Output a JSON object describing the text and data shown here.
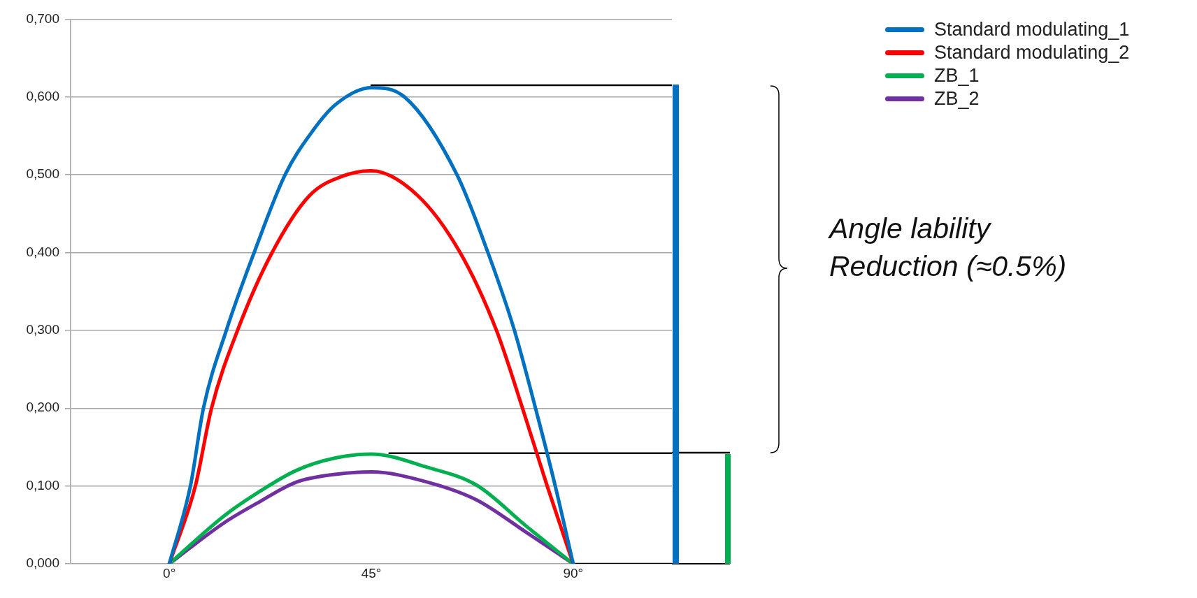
{
  "chart_data": {
    "type": "line",
    "xlim": [
      -22,
      112
    ],
    "xticks": [
      {
        "value": 0,
        "label": "0°"
      },
      {
        "value": 45,
        "label": "45°"
      },
      {
        "value": 90,
        "label": "90°"
      }
    ],
    "ylim": [
      0,
      0.7
    ],
    "yticks": [
      {
        "value": 0,
        "label": "0,000"
      },
      {
        "value": 0.1,
        "label": "0,100"
      },
      {
        "value": 0.2,
        "label": "0,200"
      },
      {
        "value": 0.3,
        "label": "0,300"
      },
      {
        "value": 0.4,
        "label": "0,400"
      },
      {
        "value": 0.5,
        "label": "0,500"
      },
      {
        "value": 0.6,
        "label": "0,600"
      },
      {
        "value": 0.7,
        "label": "0,700"
      }
    ],
    "grid": "y",
    "legend": "top right",
    "annotations": [
      "Angle lability\nReduction (≈0.5%)"
    ],
    "series": [
      {
        "name": "Standard modulating_1",
        "color": "#0070c0",
        "x": [
          0,
          4.7,
          7.6,
          12.7,
          18.9,
          25.8,
          31.9,
          37,
          45,
          52.4,
          64.1,
          71,
          76.9,
          81.6,
          86,
          90
        ],
        "values": [
          0,
          0.1,
          0.2,
          0.3,
          0.4,
          0.5,
          0.556,
          0.59,
          0.612,
          0.6,
          0.5,
          0.4,
          0.3,
          0.2,
          0.1,
          0
        ]
      },
      {
        "name": "Standard modulating_2",
        "color": "#ff0000",
        "x": [
          0,
          5.8,
          9.4,
          15.2,
          22.9,
          31.2,
          38.5,
          45,
          55.4,
          64.8,
          72.9,
          78.7,
          84.2,
          90
        ],
        "values": [
          0,
          0.1,
          0.2,
          0.3,
          0.4,
          0.473,
          0.498,
          0.505,
          0.473,
          0.4,
          0.3,
          0.2,
          0.1,
          0
        ]
      },
      {
        "name": "ZB_1",
        "color": "#00b050",
        "x": [
          0,
          12.3,
          19.6,
          28.3,
          37,
          45,
          57.5,
          68.5,
          79.4,
          90
        ],
        "values": [
          0,
          0.062,
          0.091,
          0.12,
          0.136,
          0.141,
          0.124,
          0.101,
          0.049,
          0
        ]
      },
      {
        "name": "ZB_2",
        "color": "#7030a0",
        "x": [
          0,
          12.3,
          19.6,
          28.3,
          37,
          45,
          57.5,
          68.5,
          79.4,
          90
        ],
        "values": [
          0,
          0.053,
          0.078,
          0.105,
          0.115,
          0.118,
          0.105,
          0.082,
          0.041,
          0
        ]
      },
      {
        "color": "#000000",
        "x": [
          45,
          112
        ],
        "values": [
          0.615,
          0.615
        ]
      },
      {
        "color": "#000000",
        "x": [
          49,
          112
        ],
        "values": [
          0.142,
          0.142
        ]
      },
      {
        "color": "#000000",
        "x": [
          90,
          112
        ],
        "values": [
          0,
          0
        ]
      }
    ]
  }
}
